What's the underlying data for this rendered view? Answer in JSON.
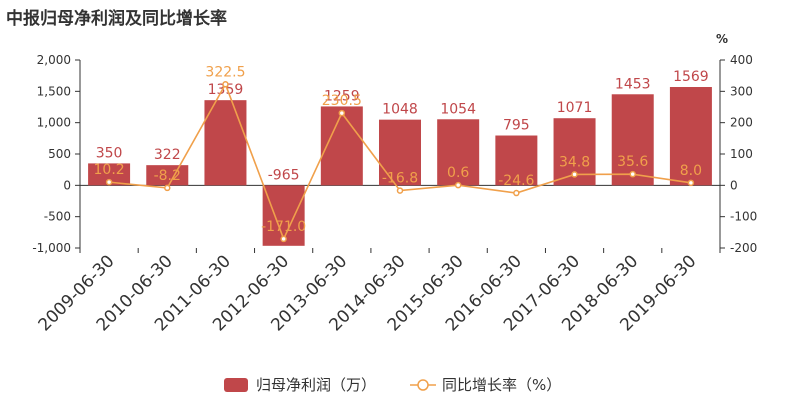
{
  "chart_data": {
    "type": "bar",
    "title": "中报归母净利润及同比增长率",
    "categories": [
      "2009-06-30",
      "2010-06-30",
      "2011-06-30",
      "2012-06-30",
      "2013-06-30",
      "2014-06-30",
      "2015-06-30",
      "2016-06-30",
      "2017-06-30",
      "2018-06-30",
      "2019-06-30"
    ],
    "series": [
      {
        "name": "归母净利润（万）",
        "type": "bar",
        "axis": "left",
        "color": "#c0474a",
        "values": [
          350,
          322,
          1359,
          -965,
          1259,
          1048,
          1054,
          795,
          1071,
          1453,
          1569
        ],
        "labels": [
          "350",
          "322",
          "1359",
          "-965",
          "1259",
          "1048",
          "1054",
          "795",
          "1071",
          "1453",
          "1569"
        ]
      },
      {
        "name": "同比增长率（%）",
        "type": "line",
        "axis": "right",
        "color": "#f0a04b",
        "values": [
          10.2,
          -8.2,
          322.5,
          -171.0,
          230.5,
          -16.8,
          0.6,
          -24.6,
          34.8,
          35.6,
          8.0
        ],
        "labels": [
          "10.2",
          "-8.2",
          "322.5",
          "-171.0",
          "230.5",
          "-16.8",
          "0.6",
          "-24.6",
          "34.8",
          "35.6",
          "8.0"
        ]
      }
    ],
    "y_left": {
      "ylim": [
        -1000,
        2000
      ],
      "ticks": [
        "-1,000",
        "-500",
        "0",
        "500",
        "1,000",
        "1,500",
        "2,000"
      ],
      "tick_values": [
        -1000,
        -500,
        0,
        500,
        1000,
        1500,
        2000
      ]
    },
    "y_right": {
      "unit": "%",
      "ylim": [
        -200,
        400
      ],
      "ticks": [
        "-200",
        "-100",
        "0",
        "100",
        "200",
        "300",
        "400"
      ],
      "tick_values": [
        -200,
        -100,
        0,
        100,
        200,
        300,
        400
      ]
    },
    "legend": {
      "position": "bottom-center"
    },
    "grid": false
  }
}
